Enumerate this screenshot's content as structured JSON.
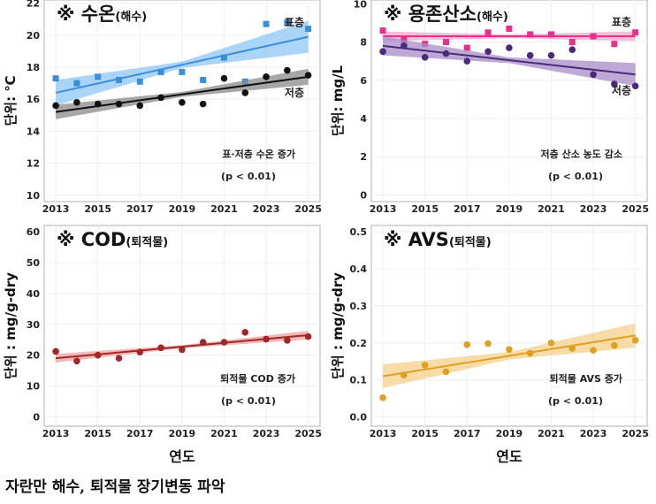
{
  "caption": "자란만 해수, 퇴적물 장기변동 파악",
  "chart_data": [
    {
      "type": "scatter",
      "title": "※ 수온",
      "title_sub": "(해수)",
      "ylabel": "단위: ℃",
      "xlabel": "",
      "xticks": [
        2013,
        2015,
        2017,
        2019,
        2021,
        2023,
        2025
      ],
      "yticks": [
        10,
        12,
        14,
        16,
        18,
        20,
        22
      ],
      "ylim": [
        9.6,
        22.2
      ],
      "grid": true,
      "annotation": [
        "표·저층 수온 증가",
        "(p < 0.01)"
      ],
      "x": [
        2013,
        2014,
        2015,
        2016,
        2017,
        2018,
        2019,
        2020,
        2021,
        2022,
        2023,
        2024,
        2025
      ],
      "series": [
        {
          "name": "표층",
          "marker": "square",
          "color": "#3a8fd9",
          "band_color": "#8ec5f5",
          "values": [
            17.3,
            17.0,
            17.4,
            17.2,
            17.1,
            17.7,
            17.7,
            17.2,
            18.6,
            17.1,
            20.7,
            20.8,
            20.4
          ],
          "trend": [
            16.4,
            19.9
          ],
          "band": [
            0.8,
            0.2,
            1.0
          ]
        },
        {
          "name": "저층",
          "marker": "circle",
          "color": "#111111",
          "band_color": "#8a8a8a",
          "values": [
            15.6,
            15.8,
            15.7,
            15.7,
            15.6,
            16.1,
            15.8,
            15.7,
            17.3,
            16.4,
            17.4,
            17.8,
            17.5
          ],
          "trend": [
            15.2,
            17.4
          ],
          "band": [
            0.45,
            0.15,
            0.5
          ]
        }
      ]
    },
    {
      "type": "scatter",
      "title": "※ 용존산소",
      "title_sub": "(해수)",
      "ylabel": "단위: mg/L",
      "xlabel": "",
      "xticks": [
        2013,
        2015,
        2017,
        2019,
        2021,
        2023,
        2025
      ],
      "yticks": [
        0,
        2,
        4,
        6,
        8,
        10
      ],
      "ylim": [
        -0.35,
        10.2
      ],
      "grid": true,
      "annotation": [
        "저층 산소 농도 감소",
        "(p < 0.01)"
      ],
      "x": [
        2013,
        2014,
        2015,
        2016,
        2017,
        2018,
        2019,
        2020,
        2021,
        2022,
        2023,
        2024,
        2025
      ],
      "series": [
        {
          "name": "표층",
          "marker": "square",
          "color": "#e8308a",
          "band_color": "#f7a6cc",
          "values": [
            8.6,
            8.1,
            7.9,
            8.0,
            7.7,
            8.5,
            8.7,
            8.4,
            8.4,
            8.0,
            8.3,
            7.9,
            8.5
          ],
          "trend": [
            8.3,
            8.3
          ],
          "band": [
            0.25,
            0.1,
            0.25
          ]
        },
        {
          "name": "저층",
          "marker": "circle",
          "color": "#4a2a7a",
          "band_color": "#a88cc8",
          "values": [
            7.5,
            7.8,
            7.2,
            7.4,
            7.0,
            7.5,
            7.7,
            7.3,
            7.3,
            7.6,
            6.3,
            5.8,
            5.7
          ],
          "trend": [
            7.8,
            6.3
          ],
          "band": [
            0.5,
            0.15,
            0.6
          ]
        }
      ]
    },
    {
      "type": "scatter",
      "title": "※ COD",
      "title_sub": "(퇴적물)",
      "ylabel": "단위 : mg/g-dry",
      "xlabel": "연도",
      "xticks": [
        2013,
        2015,
        2017,
        2019,
        2021,
        2023,
        2025
      ],
      "yticks": [
        0,
        10,
        20,
        30,
        40,
        50,
        60
      ],
      "ylim": [
        -3,
        62
      ],
      "grid": true,
      "annotation": [
        "퇴적물 COD 증가",
        "(p < 0.01)"
      ],
      "x": [
        2013,
        2014,
        2015,
        2016,
        2017,
        2018,
        2019,
        2020,
        2021,
        2022,
        2023,
        2024,
        2025
      ],
      "series": [
        {
          "marker": "circle",
          "color": "#a02828",
          "band_color": "#f0a0a0",
          "values": [
            21.2,
            18.1,
            20.0,
            19.0,
            21.0,
            22.4,
            21.8,
            24.2,
            24.2,
            27.4,
            25.2,
            24.8,
            26.0
          ],
          "trend": [
            19.0,
            26.5
          ],
          "band": [
            1.4,
            0.5,
            1.4
          ]
        }
      ]
    },
    {
      "type": "scatter",
      "title": "※ AVS",
      "title_sub": "(퇴적물)",
      "ylabel": "단위 : mg/g-dry",
      "xlabel": "연도",
      "xticks": [
        2013,
        2015,
        2017,
        2019,
        2021,
        2023,
        2025
      ],
      "yticks": [
        0.0,
        0.1,
        0.2,
        0.3,
        0.4,
        0.5
      ],
      "ylim": [
        -0.025,
        0.517
      ],
      "grid": true,
      "annotation": [
        "퇴적물 AVS 증가",
        "(p < 0.01)"
      ],
      "x": [
        2013,
        2014,
        2015,
        2016,
        2017,
        2018,
        2019,
        2020,
        2021,
        2022,
        2023,
        2024,
        2025
      ],
      "series": [
        {
          "marker": "circle",
          "color": "#e0a020",
          "band_color": "#f6d08a",
          "values": [
            0.052,
            0.113,
            0.14,
            0.122,
            0.195,
            0.198,
            0.182,
            0.172,
            0.2,
            0.185,
            0.18,
            0.193,
            0.207
          ],
          "trend": [
            0.11,
            0.22
          ],
          "band": [
            0.032,
            0.01,
            0.033
          ]
        }
      ]
    }
  ]
}
